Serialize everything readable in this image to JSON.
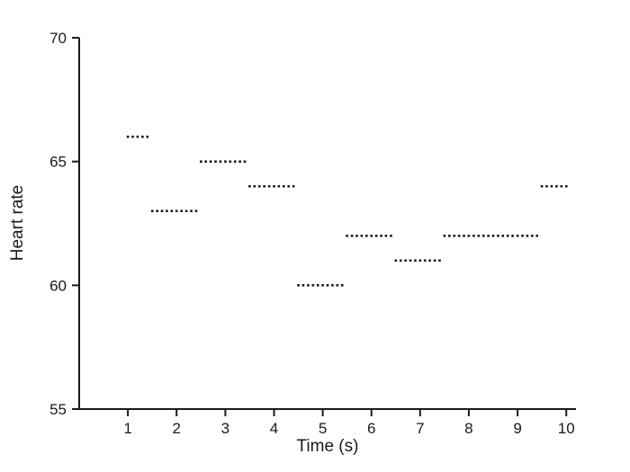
{
  "chart_data": {
    "type": "scatter",
    "subtype": "dotted-step-series",
    "title": "",
    "xlabel": "Time (s)",
    "ylabel": "Heart rate",
    "xlim": [
      0,
      10.2
    ],
    "ylim": [
      55,
      70
    ],
    "xticks": [
      1,
      2,
      3,
      4,
      5,
      6,
      7,
      8,
      9,
      10
    ],
    "yticks": [
      55,
      60,
      65,
      70
    ],
    "grid": false,
    "legend": false,
    "marker": "small-square-dot",
    "sample_interval_s": 0.1,
    "steps": [
      {
        "x_start": 1.0,
        "x_end": 1.5,
        "y": 66
      },
      {
        "x_start": 1.5,
        "x_end": 2.5,
        "y": 63
      },
      {
        "x_start": 2.5,
        "x_end": 3.5,
        "y": 65
      },
      {
        "x_start": 3.5,
        "x_end": 4.5,
        "y": 64
      },
      {
        "x_start": 4.5,
        "x_end": 5.5,
        "y": 60
      },
      {
        "x_start": 5.5,
        "x_end": 6.5,
        "y": 62
      },
      {
        "x_start": 6.5,
        "x_end": 7.5,
        "y": 61
      },
      {
        "x_start": 7.5,
        "x_end": 9.5,
        "y": 62
      },
      {
        "x_start": 9.5,
        "x_end": 10.0,
        "y": 64
      }
    ],
    "colors": {
      "axis": "#1a1a1a",
      "dots": "#1a1a1a",
      "background": "#ffffff"
    }
  }
}
